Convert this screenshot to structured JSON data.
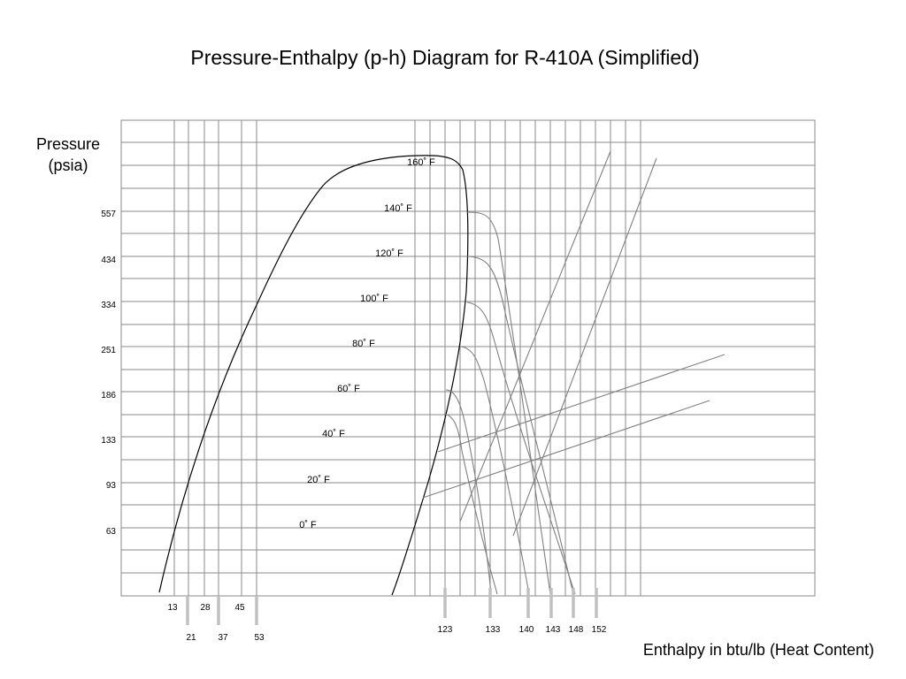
{
  "title": "Pressure-Enthalpy (p-h) Diagram for R-410A (Simplified)",
  "colors": {
    "grid": "#8a8a8a",
    "dome": "#000000",
    "curves": "#808080",
    "ticks": "#c0c0c0",
    "background": "#ffffff"
  },
  "chart_data": {
    "type": "line",
    "title": "Pressure-Enthalpy (p-h) Diagram for R-410A (Simplified)",
    "ylabel_lines": [
      "Pressure",
      "(psia)"
    ],
    "xlabel": "Enthalpy in btu/lb (Heat Content)",
    "grid": true,
    "y_ticks": [
      "557",
      "434",
      "334",
      "251",
      "186",
      "133",
      "93",
      "63"
    ],
    "x_ticks": [
      "13",
      "28",
      "45",
      "21",
      "37",
      "53",
      "123",
      "133",
      "140",
      "143",
      "148",
      "152"
    ],
    "isotherm_labels": [
      "160˚ F",
      "140˚ F",
      "120˚ F",
      "100˚ F",
      "80˚ F",
      "60˚ F",
      "40˚ F",
      "20˚ F",
      "0˚ F"
    ],
    "isotherm_temperatures_F": [
      160,
      140,
      120,
      100,
      80,
      60,
      40,
      20,
      0
    ]
  }
}
